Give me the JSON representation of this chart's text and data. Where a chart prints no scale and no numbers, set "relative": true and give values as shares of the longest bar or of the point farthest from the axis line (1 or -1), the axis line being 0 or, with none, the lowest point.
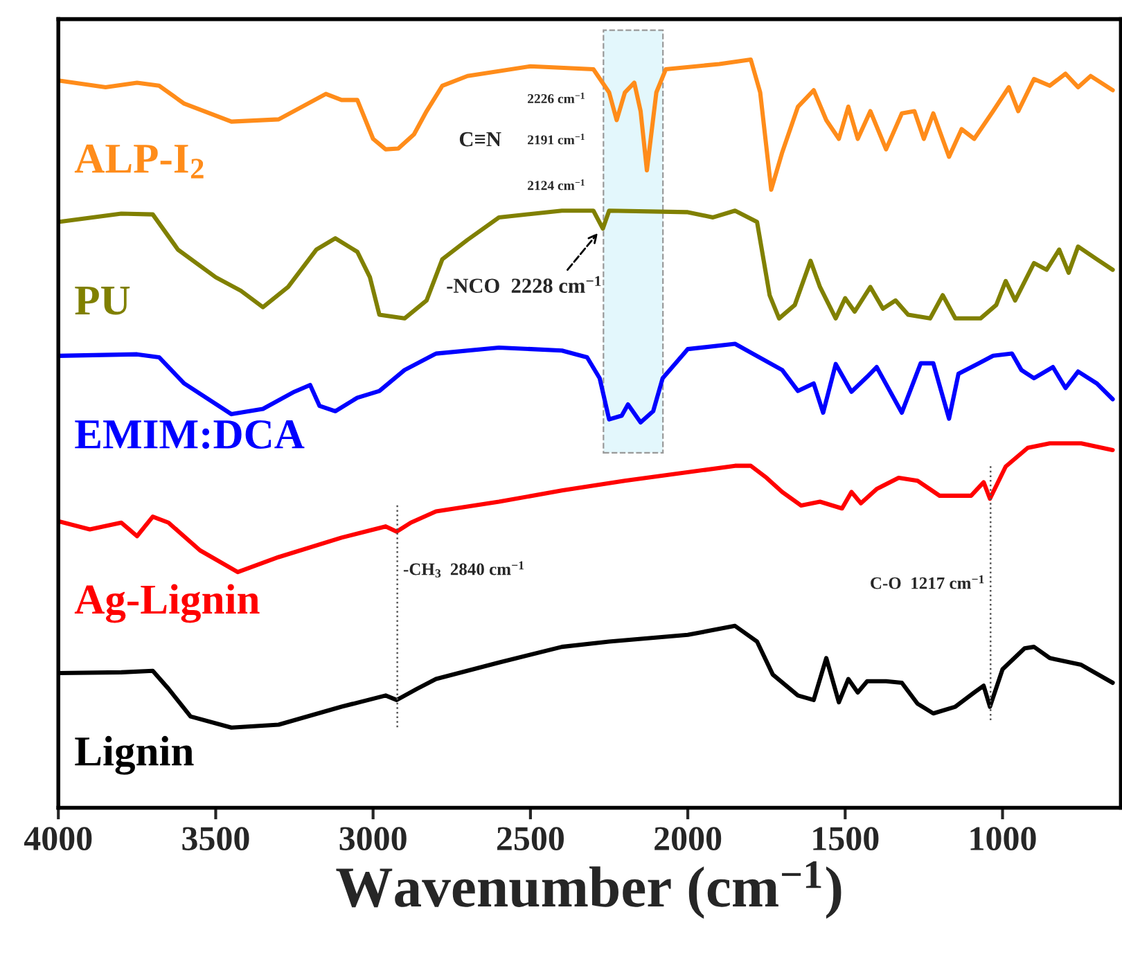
{
  "chart_data": {
    "type": "line",
    "relative": true,
    "xlabel": "Wavenumber (cm$^{−1}$)",
    "xlim": [
      4000,
      624
    ],
    "xticks": [
      4000,
      3500,
      3000,
      2500,
      2000,
      1500,
      1000
    ],
    "tick_labels": "x",
    "legend": false,
    "grid": false,
    "marker": "none",
    "line_style": "solid",
    "series": [
      {
        "name": "ALP-I$_{2}$",
        "color": "#ff8c1a",
        "x": [
          4000,
          3850,
          3750,
          3680,
          3600,
          3450,
          3300,
          3150,
          3100,
          3050,
          3000,
          2960,
          2920,
          2870,
          2830,
          2780,
          2700,
          2500,
          2300,
          2250,
          2226,
          2200,
          2170,
          2150,
          2130,
          2100,
          2070,
          1900,
          1800,
          1770,
          1735,
          1700,
          1650,
          1600,
          1560,
          1520,
          1490,
          1460,
          1420,
          1370,
          1320,
          1280,
          1250,
          1220,
          1170,
          1130,
          1090,
          1030,
          980,
          950,
          900,
          850,
          800,
          760,
          720,
          650
        ],
        "values": [
          0.972,
          0.963,
          0.969,
          0.965,
          0.941,
          0.917,
          0.92,
          0.954,
          0.946,
          0.946,
          0.894,
          0.88,
          0.881,
          0.9,
          0.931,
          0.965,
          0.978,
          0.991,
          0.987,
          0.956,
          0.919,
          0.956,
          0.969,
          0.931,
          0.852,
          0.956,
          0.987,
          0.994,
          1.0,
          0.956,
          0.826,
          0.876,
          0.937,
          0.959,
          0.919,
          0.894,
          0.937,
          0.894,
          0.931,
          0.88,
          0.928,
          0.931,
          0.894,
          0.928,
          0.87,
          0.907,
          0.894,
          0.931,
          0.963,
          0.931,
          0.974,
          0.965,
          0.981,
          0.963,
          0.978,
          0.959
        ]
      },
      {
        "name": "PU",
        "color": "#808000",
        "x": [
          4000,
          3800,
          3700,
          3620,
          3500,
          3420,
          3350,
          3270,
          3180,
          3120,
          3050,
          3010,
          2980,
          2900,
          2830,
          2780,
          2700,
          2600,
          2400,
          2300,
          2270,
          2250,
          2000,
          1920,
          1850,
          1780,
          1740,
          1710,
          1660,
          1610,
          1580,
          1530,
          1500,
          1470,
          1420,
          1380,
          1340,
          1300,
          1230,
          1190,
          1150,
          1070,
          1020,
          990,
          960,
          900,
          860,
          820,
          790,
          760,
          700,
          650
        ],
        "values": [
          0.783,
          0.794,
          0.793,
          0.746,
          0.709,
          0.691,
          0.669,
          0.696,
          0.746,
          0.761,
          0.743,
          0.709,
          0.659,
          0.654,
          0.678,
          0.733,
          0.759,
          0.789,
          0.798,
          0.798,
          0.774,
          0.798,
          0.796,
          0.789,
          0.798,
          0.783,
          0.685,
          0.654,
          0.672,
          0.731,
          0.696,
          0.654,
          0.681,
          0.663,
          0.696,
          0.667,
          0.678,
          0.659,
          0.654,
          0.685,
          0.654,
          0.654,
          0.672,
          0.704,
          0.678,
          0.728,
          0.719,
          0.746,
          0.715,
          0.75,
          0.733,
          0.719
        ]
      },
      {
        "name": "EMIM:DCA",
        "color": "#0000ff",
        "x": [
          4000,
          3750,
          3680,
          3600,
          3450,
          3350,
          3250,
          3200,
          3170,
          3120,
          3050,
          2980,
          2900,
          2800,
          2600,
          2400,
          2320,
          2280,
          2250,
          2210,
          2190,
          2150,
          2110,
          2080,
          2000,
          1850,
          1700,
          1650,
          1600,
          1570,
          1530,
          1480,
          1430,
          1400,
          1320,
          1260,
          1220,
          1170,
          1140,
          1080,
          1030,
          970,
          940,
          900,
          840,
          800,
          760,
          700,
          650
        ],
        "values": [
          0.604,
          0.606,
          0.602,
          0.567,
          0.526,
          0.533,
          0.556,
          0.565,
          0.537,
          0.53,
          0.548,
          0.557,
          0.585,
          0.607,
          0.615,
          0.611,
          0.602,
          0.574,
          0.519,
          0.524,
          0.539,
          0.515,
          0.53,
          0.574,
          0.613,
          0.62,
          0.585,
          0.557,
          0.567,
          0.528,
          0.593,
          0.556,
          0.576,
          0.589,
          0.528,
          0.594,
          0.594,
          0.52,
          0.58,
          0.593,
          0.604,
          0.607,
          0.585,
          0.574,
          0.589,
          0.561,
          0.583,
          0.567,
          0.546
        ]
      },
      {
        "name": "Ag-Lignin",
        "color": "#ff0000",
        "x": [
          4000,
          3900,
          3800,
          3750,
          3700,
          3650,
          3550,
          3430,
          3300,
          3100,
          2960,
          2925,
          2880,
          2800,
          2600,
          2400,
          2200,
          1850,
          1800,
          1750,
          1700,
          1640,
          1580,
          1510,
          1480,
          1450,
          1400,
          1330,
          1270,
          1200,
          1100,
          1060,
          1040,
          990,
          920,
          850,
          750,
          650
        ],
        "values": [
          0.383,
          0.372,
          0.381,
          0.363,
          0.389,
          0.381,
          0.344,
          0.315,
          0.335,
          0.361,
          0.376,
          0.369,
          0.381,
          0.396,
          0.409,
          0.424,
          0.437,
          0.457,
          0.457,
          0.441,
          0.422,
          0.404,
          0.409,
          0.4,
          0.422,
          0.407,
          0.426,
          0.441,
          0.437,
          0.417,
          0.417,
          0.435,
          0.413,
          0.456,
          0.481,
          0.487,
          0.487,
          0.478
        ]
      },
      {
        "name": "Lignin",
        "color": "#000000",
        "x": [
          4000,
          3800,
          3700,
          3650,
          3580,
          3450,
          3300,
          3100,
          2960,
          2925,
          2860,
          2800,
          2600,
          2400,
          2250,
          2000,
          1850,
          1780,
          1730,
          1650,
          1600,
          1560,
          1520,
          1490,
          1460,
          1430,
          1370,
          1320,
          1270,
          1220,
          1150,
          1090,
          1060,
          1040,
          1000,
          930,
          900,
          850,
          750,
          650
        ],
        "values": [
          0.18,
          0.181,
          0.183,
          0.159,
          0.122,
          0.107,
          0.111,
          0.135,
          0.15,
          0.144,
          0.159,
          0.172,
          0.194,
          0.215,
          0.222,
          0.231,
          0.243,
          0.222,
          0.178,
          0.15,
          0.144,
          0.2,
          0.141,
          0.172,
          0.154,
          0.169,
          0.169,
          0.167,
          0.139,
          0.126,
          0.135,
          0.154,
          0.163,
          0.135,
          0.185,
          0.213,
          0.215,
          0.2,
          0.191,
          0.167
        ]
      }
    ],
    "bands": [
      {
        "axis": "x",
        "from": 2268,
        "to": 2079,
        "color": "#e3f7fc"
      }
    ],
    "ref_lines": [
      {
        "axis": "x",
        "value": 2923,
        "label": "-CH$_{3}$  2840 cm$^{−1}$",
        "line_style": "dotted",
        "color": "#555555"
      },
      {
        "axis": "x",
        "value": 1038,
        "label": "C-O  1217 cm$^{−1}$",
        "line_style": "dotted",
        "color": "#555555"
      }
    ],
    "annotations": [
      "2226 cm$^{−1}$",
      "C≡N",
      "2191 cm$^{−1}$",
      "2124 cm$^{−1}$",
      "-NCO  2228 cm$^{−1}$"
    ]
  }
}
